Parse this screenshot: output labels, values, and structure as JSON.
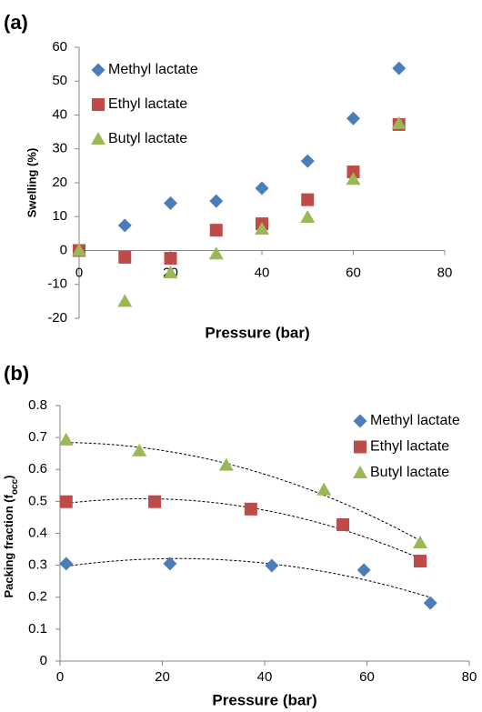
{
  "chart_data": [
    {
      "type": "scatter",
      "panel_label": "(a)",
      "x_label": "Pressure (bar)",
      "y_label": "Swelling (%)",
      "xlim": [
        0,
        80
      ],
      "xticks": [
        0,
        20,
        40,
        60,
        80
      ],
      "ylim": [
        -20,
        60
      ],
      "yticks": [
        -20,
        -10,
        0,
        10,
        20,
        30,
        40,
        50,
        60
      ],
      "legend": "top-left",
      "trendline": null,
      "series": [
        {
          "name": "Methyl lactate",
          "color": "#4a7ebb",
          "marker": "diamond",
          "x": [
            0,
            10,
            20,
            30,
            40,
            50,
            60,
            70
          ],
          "values": [
            0,
            7.4,
            14,
            14.6,
            18.4,
            26.4,
            39,
            53.8
          ]
        },
        {
          "name": "Ethyl lactate",
          "color": "#be4b48",
          "marker": "square",
          "x": [
            0,
            10,
            20,
            30,
            40,
            50,
            60,
            70
          ],
          "values": [
            0,
            -2,
            -2.3,
            6,
            7.9,
            15,
            23.2,
            37.2
          ]
        },
        {
          "name": "Butyl lactate",
          "color": "#98b954",
          "marker": "triangle",
          "x": [
            0,
            10,
            20,
            30,
            40,
            50,
            60,
            70
          ],
          "values": [
            0,
            -15,
            -6.6,
            -1,
            6.3,
            9.8,
            21,
            37.5
          ]
        }
      ]
    },
    {
      "type": "scatter",
      "panel_label": "(b)",
      "x_label": "Pressure (bar)",
      "y_label": [
        {
          "text": "Packing fraction (f"
        },
        {
          "text": "occ",
          "sub": true
        },
        {
          "text": ")"
        }
      ],
      "xlim": [
        0,
        80
      ],
      "xticks": [
        0,
        20,
        40,
        60,
        80
      ],
      "ylim": [
        0,
        0.8
      ],
      "yticks": [
        0,
        0.1,
        0.2,
        0.3,
        0.4,
        0.5,
        0.6,
        0.7,
        0.8
      ],
      "legend": "top-right",
      "trendline": "polynomial-2",
      "series": [
        {
          "name": "Methyl lactate",
          "color": "#4a7ebb",
          "marker": "diamond",
          "x": [
            1.2,
            21.5,
            41.4,
            59.4,
            72.4
          ],
          "values": [
            0.305,
            0.305,
            0.299,
            0.285,
            0.182
          ]
        },
        {
          "name": "Ethyl lactate",
          "color": "#be4b48",
          "marker": "square",
          "x": [
            1.2,
            18.5,
            37.3,
            55.3,
            70.4
          ],
          "values": [
            0.499,
            0.499,
            0.476,
            0.427,
            0.313
          ]
        },
        {
          "name": "Butyl lactate",
          "color": "#98b954",
          "marker": "triangle",
          "x": [
            1.2,
            15.5,
            32.5,
            51.6,
            70.4
          ],
          "values": [
            0.692,
            0.658,
            0.613,
            0.536,
            0.37
          ]
        }
      ]
    }
  ]
}
